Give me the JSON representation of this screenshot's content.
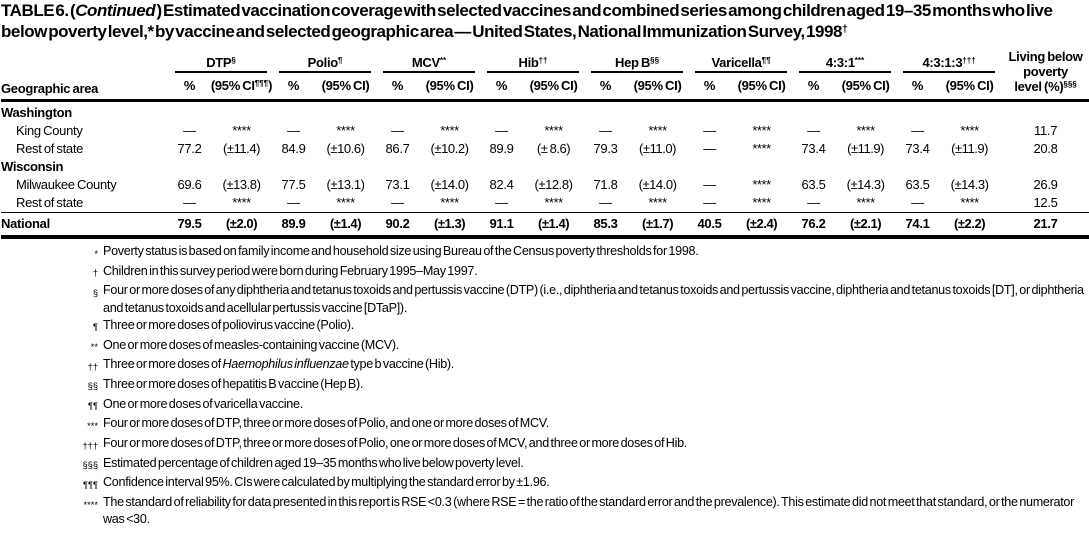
{
  "title": {
    "parts": [
      {
        "text": "TABLE 6. ("
      },
      {
        "text": "Continued",
        "italic": true
      },
      {
        "text": " ) Estimated vaccination coverage with selected vaccines and combined series among children aged 19–35 months who live below poverty level,* by vaccine and selected geographic area — United States, National Immunization Survey, 1998"
      },
      {
        "text": "†",
        "sup": true
      }
    ]
  },
  "table": {
    "geo_header": "Geographic area",
    "pct_header": "%",
    "columns": [
      {
        "label": "DTP",
        "sup": "§",
        "ci_label": "(95% CI",
        "ci_sup": "¶¶¶",
        "ci_close": ")"
      },
      {
        "label": "Polio",
        "sup": "¶",
        "ci_label": "(95% CI)"
      },
      {
        "label": "MCV",
        "sup": "**",
        "ci_label": "(95% CI)"
      },
      {
        "label": "Hib",
        "sup": "††",
        "ci_label": "(95% CI)"
      },
      {
        "label": "Hep B",
        "sup": "§§",
        "ci_label": "(95% CI)"
      },
      {
        "label": "Varicella",
        "sup": "¶¶",
        "ci_label": "(95% CI)"
      },
      {
        "label": "4:3:1",
        "sup": "***",
        "ci_label": "(95% CI)"
      },
      {
        "label": "4:3:1:3",
        "sup": "†††",
        "ci_label": "(95% CI)"
      }
    ],
    "poverty_header": {
      "lines": [
        "Living below",
        "poverty"
      ],
      "last_line": "level (%)",
      "sup": "§§§"
    },
    "rows": [
      {
        "type": "group",
        "label": "Washington"
      },
      {
        "type": "data",
        "label": "King County",
        "values": [
          [
            "—",
            "****"
          ],
          [
            "—",
            "****"
          ],
          [
            "—",
            "****"
          ],
          [
            "—",
            "****"
          ],
          [
            "—",
            "****"
          ],
          [
            "—",
            "****"
          ],
          [
            "—",
            "****"
          ],
          [
            "—",
            "****"
          ]
        ],
        "poverty": "11.7"
      },
      {
        "type": "data",
        "label": "Rest of state",
        "values": [
          [
            "77.2",
            "(±11.4)"
          ],
          [
            "84.9",
            "(±10.6)"
          ],
          [
            "86.7",
            "(±10.2)"
          ],
          [
            "89.9",
            "(± 8.6)"
          ],
          [
            "79.3",
            "(±11.0)"
          ],
          [
            "—",
            "****"
          ],
          [
            "73.4",
            "(±11.9)"
          ],
          [
            "73.4",
            "(±11.9)"
          ]
        ],
        "poverty": "20.8"
      },
      {
        "type": "group",
        "label": "Wisconsin"
      },
      {
        "type": "data",
        "label": "Milwaukee County",
        "values": [
          [
            "69.6",
            "(±13.8)"
          ],
          [
            "77.5",
            "(±13.1)"
          ],
          [
            "73.1",
            "(±14.0)"
          ],
          [
            "82.4",
            "(±12.8)"
          ],
          [
            "71.8",
            "(±14.0)"
          ],
          [
            "—",
            "****"
          ],
          [
            "63.5",
            "(±14.3)"
          ],
          [
            "63.5",
            "(±14.3)"
          ]
        ],
        "poverty": "26.9"
      },
      {
        "type": "data",
        "label": "Rest of state",
        "values": [
          [
            "—",
            "****"
          ],
          [
            "—",
            "****"
          ],
          [
            "—",
            "****"
          ],
          [
            "—",
            "****"
          ],
          [
            "—",
            "****"
          ],
          [
            "—",
            "****"
          ],
          [
            "—",
            "****"
          ],
          [
            "—",
            "****"
          ]
        ],
        "poverty": "12.5"
      },
      {
        "type": "total",
        "label": "National",
        "values": [
          [
            "79.5",
            "(±2.0)"
          ],
          [
            "89.9",
            "(±1.4)"
          ],
          [
            "90.2",
            "(±1.3)"
          ],
          [
            "91.1",
            "(±1.4)"
          ],
          [
            "85.3",
            "(±1.7)"
          ],
          [
            "40.5",
            "(±2.4)"
          ],
          [
            "76.2",
            "(±2.1)"
          ],
          [
            "74.1",
            "(±2.2)"
          ]
        ],
        "poverty": "21.7"
      }
    ]
  },
  "footnotes": [
    {
      "marker": "*",
      "parts": [
        {
          "text": "Poverty status is based on family income and household size using Bureau of the Census poverty thresholds for 1998."
        }
      ]
    },
    {
      "marker": "†",
      "parts": [
        {
          "text": "Children in this survey period were born during February 1995–May 1997."
        }
      ]
    },
    {
      "marker": "§",
      "parts": [
        {
          "text": "Four or more doses of any diphtheria and tetanus toxoids and pertussis vaccine (DTP) (i.e., diphtheria and tetanus toxoids and pertussis vaccine, diphtheria and tetanus toxoids [DT], or diphtheria and tetanus toxoids and acellular pertussis vaccine [DTaP])."
        }
      ]
    },
    {
      "marker": "¶",
      "parts": [
        {
          "text": "Three or more doses of poliovirus vaccine (Polio)."
        }
      ]
    },
    {
      "marker": "**",
      "parts": [
        {
          "text": "One or more doses of measles-containing vaccine (MCV)."
        }
      ]
    },
    {
      "marker": "††",
      "parts": [
        {
          "text": "Three or more doses of "
        },
        {
          "text": "Haemophilus influenzae",
          "italic": true
        },
        {
          "text": " type b vaccine (Hib)."
        }
      ]
    },
    {
      "marker": "§§",
      "parts": [
        {
          "text": "Three or more doses of hepatitis B vaccine (Hep B)."
        }
      ]
    },
    {
      "marker": "¶¶",
      "parts": [
        {
          "text": "One or more doses of varicella vaccine."
        }
      ]
    },
    {
      "marker": "***",
      "parts": [
        {
          "text": "Four or more doses of DTP, three or more doses of Polio, and one or more doses of MCV."
        }
      ]
    },
    {
      "marker": "†††",
      "parts": [
        {
          "text": "Four or more doses of DTP, three or more doses of Polio, one or more doses of MCV, and three or more doses of Hib."
        }
      ]
    },
    {
      "marker": "§§§",
      "parts": [
        {
          "text": "Estimated percentage of children aged 19–35 months who live below poverty level."
        }
      ]
    },
    {
      "marker": "¶¶¶",
      "parts": [
        {
          "text": "Confidence interval 95%. CIs were calculated by multiplying the standard error by ±1.96."
        }
      ]
    },
    {
      "marker": "****",
      "parts": [
        {
          "text": "The standard of reliability for data presented in this report is RSE <0.3 (where RSE = the ratio of the standard error and the prevalence). This estimate did not meet that standard, or the numerator was <30."
        }
      ]
    }
  ]
}
